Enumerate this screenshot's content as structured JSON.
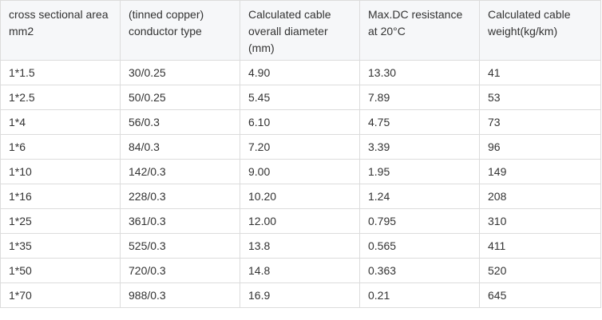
{
  "table": {
    "headers": [
      "cross sectional area mm2",
      "(tinned copper) conductor type",
      "Calculated cable overall diameter (mm)",
      "Max.DC resistance at 20°C",
      "Calculated cable weight(kg/km)"
    ],
    "rows": [
      [
        "1*1.5",
        "30/0.25",
        "4.90",
        "13.30",
        "41"
      ],
      [
        "1*2.5",
        "50/0.25",
        "5.45",
        "7.89",
        "53"
      ],
      [
        "1*4",
        "56/0.3",
        "6.10",
        "4.75",
        "73"
      ],
      [
        "1*6",
        "84/0.3",
        "7.20",
        "3.39",
        "96"
      ],
      [
        "1*10",
        "142/0.3",
        "9.00",
        "1.95",
        "149"
      ],
      [
        "1*16",
        "228/0.3",
        "10.20",
        "1.24",
        "208"
      ],
      [
        "1*25",
        "361/0.3",
        "12.00",
        "0.795",
        "310"
      ],
      [
        "1*35",
        "525/0.3",
        "13.8",
        "0.565",
        "411"
      ],
      [
        "1*50",
        "720/0.3",
        "14.8",
        "0.363",
        "520"
      ],
      [
        "1*70",
        "988/0.3",
        "16.9",
        "0.21",
        "645"
      ]
    ]
  }
}
